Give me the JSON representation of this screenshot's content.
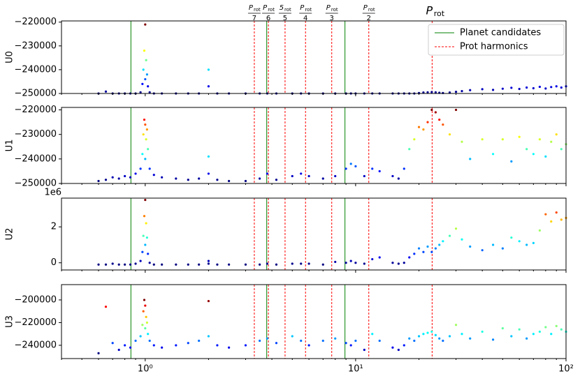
{
  "chart_data": [
    {
      "type": "scatter",
      "ylabel": "U0",
      "colormap": "jet",
      "x": [
        0.6,
        0.65,
        0.7,
        0.75,
        0.8,
        0.85,
        0.9,
        0.95,
        0.97,
        0.98,
        0.99,
        1.0,
        1.0,
        1.01,
        1.02,
        1.03,
        1.05,
        1.1,
        1.2,
        1.4,
        1.6,
        1.8,
        2.0,
        2.0,
        2.2,
        2.5,
        3,
        3.5,
        3.8,
        4.2,
        5,
        5.5,
        6,
        7,
        8,
        9,
        9.5,
        10,
        11,
        12,
        13,
        15,
        16,
        17,
        18,
        19,
        20,
        21,
        22,
        23,
        24,
        25,
        26,
        28,
        30,
        32,
        35,
        40,
        45,
        50,
        55,
        60,
        65,
        70,
        75,
        80,
        85,
        90,
        95,
        100
      ],
      "values": [
        -250000,
        -249200,
        -250000,
        -250000,
        -250000,
        -250000,
        -250000,
        -249500,
        -246000,
        -240000,
        -232000,
        -221000,
        -244000,
        -236000,
        -242000,
        -247000,
        -249500,
        -250000,
        -250000,
        -250000,
        -250000,
        -250000,
        -240000,
        -247000,
        -250000,
        -250000,
        -250000,
        -250000,
        -250000,
        -250000,
        -250000,
        -250000,
        -250000,
        -250000,
        -250000,
        -250000,
        -250000,
        -250000,
        -250000,
        -250000,
        -250000,
        -250000,
        -250000,
        -250000,
        -250000,
        -250000,
        -249800,
        -249600,
        -249500,
        -249400,
        -249500,
        -249700,
        -249800,
        -249600,
        -249300,
        -249000,
        -248600,
        -248200,
        -248500,
        -248000,
        -247600,
        -248100,
        -247500,
        -247800,
        -247200,
        -247900,
        -247300,
        -247000,
        -247500,
        -247000
      ],
      "ylim": [
        -250000,
        -219500
      ],
      "yticks": [
        {
          "value": -250000,
          "label": "−250000"
        },
        {
          "value": -240000,
          "label": "−240000"
        },
        {
          "value": -230000,
          "label": "−230000"
        },
        {
          "value": -220000,
          "label": "−220000"
        }
      ]
    },
    {
      "type": "scatter",
      "ylabel": "U1",
      "colormap": "jet",
      "x": [
        0.6,
        0.65,
        0.7,
        0.75,
        0.8,
        0.85,
        0.9,
        0.95,
        0.97,
        0.98,
        0.99,
        1.0,
        1.0,
        1.01,
        1.02,
        1.03,
        1.05,
        1.1,
        1.2,
        1.4,
        1.6,
        1.8,
        2.0,
        2.0,
        2.2,
        2.5,
        3,
        3.5,
        3.8,
        4.2,
        5,
        5.5,
        6,
        7,
        8,
        9,
        9.5,
        10,
        11,
        12,
        13,
        15,
        16,
        17,
        18,
        19,
        20,
        21,
        22,
        23,
        24,
        25,
        26,
        28,
        30,
        32,
        35,
        40,
        45,
        50,
        55,
        60,
        65,
        70,
        75,
        80,
        85,
        90,
        95,
        100
      ],
      "values": [
        -249000,
        -248500,
        -247500,
        -248000,
        -247000,
        -247500,
        -246000,
        -244000,
        -238000,
        -230000,
        -224000,
        -226000,
        -240000,
        -232000,
        -228000,
        -236000,
        -244000,
        -246500,
        -247500,
        -248000,
        -248500,
        -248000,
        -239000,
        -246000,
        -248500,
        -249000,
        -249000,
        -248000,
        -246000,
        -248500,
        -247000,
        -246000,
        -247000,
        -248000,
        -247000,
        -244000,
        -242000,
        -243000,
        -247000,
        -244000,
        -245000,
        -247000,
        -248000,
        -244000,
        -236000,
        -232000,
        -227000,
        -228000,
        -225000,
        -220000,
        -221000,
        -224000,
        -226000,
        -230000,
        -220000,
        -233000,
        -240000,
        -232000,
        -238000,
        -232000,
        -241000,
        -231000,
        -236000,
        -238000,
        -232000,
        -239000,
        -233000,
        -230000,
        -236000,
        -234000
      ],
      "ylim": [
        -250000,
        -219000
      ],
      "yticks": [
        {
          "value": -250000,
          "label": "−250000"
        },
        {
          "value": -240000,
          "label": "−240000"
        },
        {
          "value": -230000,
          "label": "−230000"
        },
        {
          "value": -220000,
          "label": "−220000"
        }
      ]
    },
    {
      "type": "scatter",
      "ylabel": "U2",
      "colormap": "jet",
      "offset_text": "1e6",
      "x": [
        0.6,
        0.65,
        0.7,
        0.75,
        0.8,
        0.85,
        0.9,
        0.95,
        0.97,
        0.98,
        0.99,
        1.0,
        1.0,
        1.01,
        1.02,
        1.03,
        1.05,
        1.1,
        1.2,
        1.4,
        1.6,
        1.8,
        2.0,
        2.0,
        2.2,
        2.5,
        3,
        3.5,
        3.8,
        4.2,
        5,
        5.5,
        6,
        7,
        8,
        9,
        9.5,
        10,
        11,
        12,
        13,
        15,
        16,
        17,
        18,
        19,
        20,
        21,
        22,
        23,
        24,
        25,
        26,
        28,
        30,
        32,
        35,
        40,
        45,
        50,
        55,
        60,
        65,
        70,
        75,
        80,
        85,
        90,
        95,
        100
      ],
      "values": [
        -0.1,
        -0.1,
        -0.05,
        -0.1,
        -0.1,
        -0.1,
        -0.05,
        0.1,
        0.6,
        1.5,
        2.6,
        3.5,
        1.0,
        2.2,
        1.4,
        0.5,
        0.0,
        -0.1,
        -0.1,
        -0.1,
        -0.1,
        -0.1,
        0.1,
        -0.05,
        -0.1,
        -0.1,
        -0.1,
        -0.1,
        -0.05,
        -0.1,
        -0.05,
        -0.05,
        -0.05,
        -0.1,
        0.05,
        0.0,
        0.1,
        0.0,
        -0.05,
        0.2,
        0.3,
        0.0,
        -0.05,
        0.0,
        0.3,
        0.5,
        0.8,
        0.6,
        0.9,
        0.6,
        0.8,
        1.0,
        1.2,
        1.5,
        1.9,
        1.3,
        0.9,
        0.7,
        1.0,
        0.8,
        1.4,
        1.2,
        1.0,
        1.1,
        1.8,
        2.7,
        2.3,
        2.8,
        2.4,
        2.5
      ],
      "ylim": [
        -0.4,
        3.6
      ],
      "yticks": [
        0,
        2
      ]
    },
    {
      "type": "scatter",
      "ylabel": "U3",
      "colormap": "jet",
      "x": [
        0.6,
        0.65,
        0.7,
        0.75,
        0.8,
        0.85,
        0.9,
        0.95,
        0.97,
        0.98,
        0.99,
        1.0,
        1.0,
        1.01,
        1.02,
        1.03,
        1.05,
        1.1,
        1.2,
        1.4,
        1.6,
        1.8,
        2.0,
        2.0,
        2.2,
        2.5,
        3,
        3.5,
        3.8,
        4.2,
        5,
        5.5,
        6,
        7,
        8,
        9,
        9.5,
        10,
        11,
        12,
        13,
        15,
        16,
        17,
        18,
        19,
        20,
        21,
        22,
        23,
        24,
        25,
        26,
        28,
        30,
        32,
        35,
        40,
        45,
        50,
        55,
        60,
        65,
        70,
        75,
        80,
        85,
        90,
        95,
        100
      ],
      "values": [
        -247000,
        -206000,
        -238000,
        -244000,
        -240000,
        -242000,
        -236000,
        -232000,
        -222000,
        -210000,
        -200000,
        -205000,
        -225000,
        -215000,
        -220000,
        -230000,
        -236000,
        -240000,
        -242000,
        -240000,
        -238000,
        -236000,
        -201000,
        -232000,
        -240000,
        -242000,
        -240000,
        -236000,
        -234000,
        -238000,
        -232000,
        -236000,
        -240000,
        -236000,
        -234000,
        -238000,
        -240000,
        -236000,
        -244000,
        -230000,
        -236000,
        -242000,
        -244000,
        -240000,
        -234000,
        -236000,
        -232000,
        -230000,
        -229000,
        -228000,
        -231000,
        -234000,
        -236000,
        -232000,
        -222000,
        -230000,
        -234000,
        -228000,
        -235000,
        -225000,
        -232000,
        -226000,
        -234000,
        -230000,
        -228000,
        -224000,
        -230000,
        -223000,
        -226000,
        -228000
      ],
      "ylim": [
        -251700,
        -186500
      ],
      "yticks": [
        {
          "value": -240000,
          "label": "−240000"
        },
        {
          "value": -220000,
          "label": "−220000"
        },
        {
          "value": -200000,
          "label": "−200000"
        }
      ]
    }
  ],
  "shared_x": {
    "log": true,
    "xlim": [
      0.4,
      100
    ],
    "xticks": [
      {
        "value": 1,
        "label": "10⁰"
      },
      {
        "value": 10,
        "label": "10¹"
      },
      {
        "value": 100,
        "label": "10²"
      }
    ],
    "xminorticks": [
      0.4,
      0.5,
      0.6,
      0.7,
      0.8,
      0.9,
      2,
      3,
      4,
      5,
      6,
      7,
      8,
      9,
      20,
      30,
      40,
      50,
      60,
      70,
      80,
      90
    ]
  },
  "overlays": {
    "planet_candidates": {
      "name": "Planet candidates",
      "color": "#008000",
      "x": [
        0.855,
        3.78,
        8.9
      ]
    },
    "harmonics": {
      "name": "Prot harmonics",
      "color": "#ff0000",
      "x": [
        3.3,
        3.85,
        4.62,
        5.78,
        7.7,
        11.55,
        23.1
      ]
    },
    "harmonic_labels": [
      {
        "numer": "P",
        "sub": "rot",
        "denom": "7"
      },
      {
        "numer": "P",
        "sub": "rot",
        "denom": "6"
      },
      {
        "numer": "5",
        "sub": "rot",
        "denom": "5"
      },
      {
        "numer": "P",
        "sub": "rot",
        "denom": "4"
      },
      {
        "numer": "P",
        "sub": "rot",
        "denom": "3"
      },
      {
        "numer": "P",
        "sub": "rot",
        "denom": "2"
      }
    ],
    "prot_label": {
      "text": "P",
      "sub": "rot"
    }
  }
}
